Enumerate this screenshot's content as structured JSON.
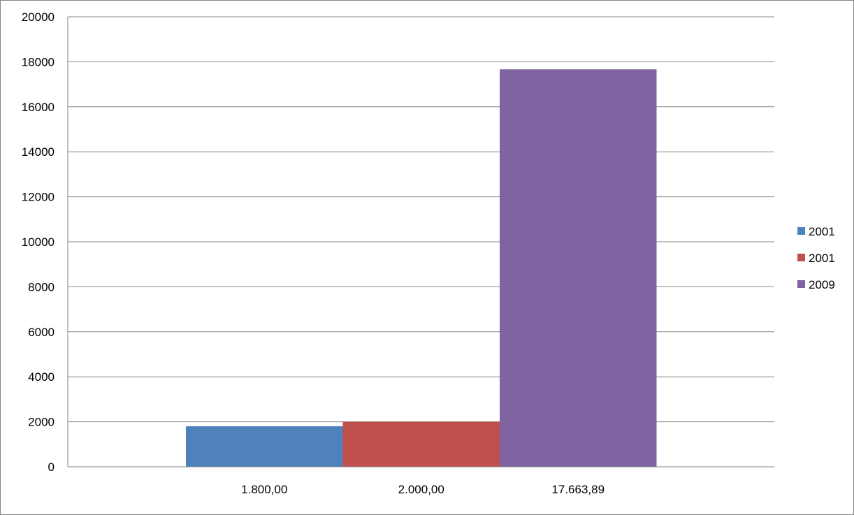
{
  "chart_data": {
    "type": "bar",
    "categories": [
      "1.800,00",
      "2.000,00",
      "17.663,89"
    ],
    "series": [
      {
        "name": "2001",
        "color": "#4F81BD",
        "values": [
          1800,
          null,
          null
        ]
      },
      {
        "name": "2001",
        "color": "#C0504D",
        "values": [
          null,
          2000,
          null
        ]
      },
      {
        "name": "2009",
        "color": "#8064A2",
        "values": [
          null,
          null,
          17663.89
        ]
      }
    ],
    "title": "",
    "xlabel": "",
    "ylabel": "",
    "ylim": [
      0,
      20000
    ],
    "yticks": [
      0,
      2000,
      4000,
      6000,
      8000,
      10000,
      12000,
      14000,
      16000,
      18000,
      20000
    ],
    "grid": true,
    "legend": "right"
  }
}
